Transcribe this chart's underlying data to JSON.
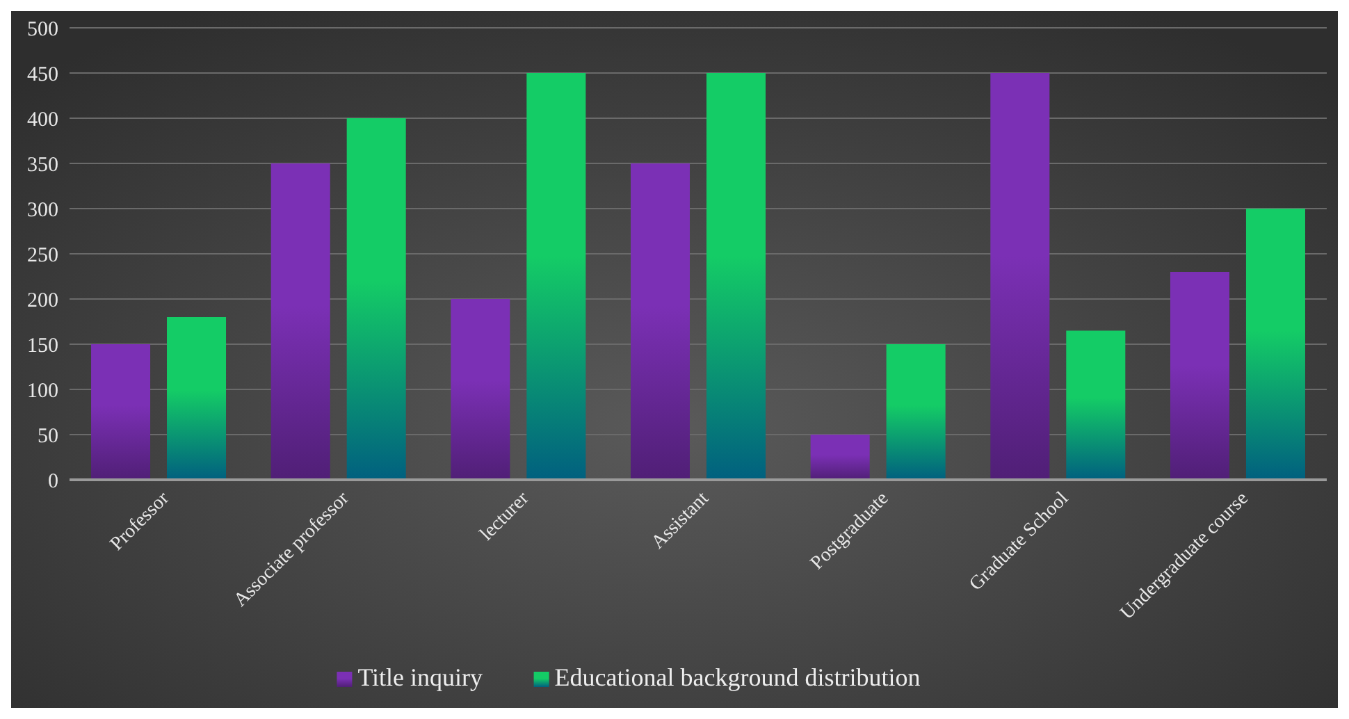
{
  "chart_data": {
    "type": "bar",
    "categories": [
      "Professor",
      "Associate professor",
      "lecturer",
      "Assistant",
      "Postgraduate",
      "Graduate School",
      "Undergraduate course"
    ],
    "series": [
      {
        "name": "Title inquiry",
        "color": "#7b30b5",
        "values": [
          150,
          350,
          200,
          350,
          50,
          450,
          230
        ]
      },
      {
        "name": "Educational background distribution",
        "color": "#14cc66",
        "values": [
          180,
          400,
          450,
          450,
          150,
          165,
          300
        ]
      }
    ],
    "ylim": [
      0,
      500
    ],
    "yticks": [
      0,
      50,
      100,
      150,
      200,
      250,
      300,
      350,
      400,
      450,
      500
    ],
    "grid": "y",
    "legend": "bottom"
  }
}
